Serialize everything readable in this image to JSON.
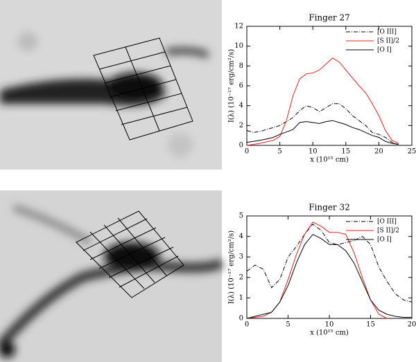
{
  "chart_data": [
    {
      "type": "line",
      "title": "Finger 27",
      "x_label": "x (10¹⁵ cm)",
      "y_label": "I(λ) (10⁻¹⁷ erg/cm²/s)",
      "x": [
        0,
        1,
        2,
        3,
        4,
        5,
        6,
        7,
        8,
        9,
        10,
        11,
        12,
        13,
        14,
        15,
        16,
        17,
        18,
        19,
        20,
        21,
        22,
        23
      ],
      "series": [
        {
          "name": "[O III]",
          "color": "#000000",
          "dash": "dash-dot",
          "values": [
            1.5,
            1.3,
            1.4,
            1.6,
            1.8,
            2.0,
            2.4,
            2.8,
            3.5,
            4.0,
            3.8,
            3.4,
            3.8,
            4.2,
            4.2,
            3.7,
            3.0,
            2.5,
            2.0,
            1.3,
            1.1,
            0.8,
            0.3,
            0.1
          ]
        },
        {
          "name": "[S II]/2",
          "color": "#e8221e",
          "values": [
            0.0,
            0.1,
            0.2,
            0.35,
            0.5,
            0.9,
            2.5,
            5.0,
            6.7,
            7.2,
            7.3,
            7.6,
            8.2,
            8.8,
            8.4,
            7.6,
            6.8,
            6.0,
            5.3,
            4.2,
            3.0,
            1.5,
            0.5,
            0.2
          ]
        },
        {
          "name": "[O I]",
          "color": "#000000",
          "values": [
            0.3,
            0.4,
            0.5,
            0.65,
            0.8,
            1.1,
            1.35,
            1.6,
            2.3,
            2.4,
            2.3,
            2.2,
            2.4,
            2.5,
            2.3,
            2.1,
            1.8,
            1.6,
            1.3,
            1.0,
            0.8,
            0.4,
            0.2,
            0.1
          ]
        }
      ],
      "xlim": [
        0,
        25
      ],
      "xticks": [
        0,
        5,
        10,
        15,
        20,
        25
      ],
      "ylim": [
        0,
        12
      ],
      "yticks": [
        0,
        2,
        4,
        6,
        8,
        10,
        12
      ]
    },
    {
      "type": "line",
      "title": "Finger 32",
      "x_label": "x (10¹⁵ cm)",
      "y_label": "I(λ) (10⁻¹⁷ erg/cm²/s)",
      "x": [
        0,
        1,
        2,
        3,
        4,
        5,
        6,
        7,
        8,
        9,
        10,
        11,
        12,
        13,
        14,
        15,
        16,
        17,
        18,
        19,
        20
      ],
      "series": [
        {
          "name": "[O III]",
          "color": "#000000",
          "dash": "dash-dot",
          "values": [
            2.3,
            2.6,
            2.4,
            1.5,
            1.9,
            3.0,
            3.5,
            4.1,
            4.6,
            4.3,
            3.7,
            3.6,
            3.7,
            3.8,
            4.0,
            3.6,
            2.5,
            1.8,
            1.2,
            0.9,
            0.8
          ]
        },
        {
          "name": "[S II]/2",
          "color": "#e8221e",
          "values": [
            0.0,
            0.05,
            0.1,
            0.3,
            0.8,
            1.9,
            3.1,
            4.1,
            4.7,
            4.5,
            4.2,
            4.2,
            4.1,
            3.2,
            2.0,
            0.9,
            0.2,
            0.0,
            null,
            null,
            null
          ]
        },
        {
          "name": "[O I]",
          "color": "#000000",
          "values": [
            0.0,
            0.1,
            0.2,
            0.3,
            0.8,
            1.6,
            2.7,
            3.6,
            4.1,
            3.9,
            3.6,
            3.6,
            3.3,
            2.7,
            1.8,
            0.9,
            0.4,
            0.2,
            0.1,
            0.05,
            0.05
          ]
        }
      ],
      "xlim": [
        0,
        20
      ],
      "xticks": [
        0,
        5,
        10,
        15,
        20
      ],
      "ylim": [
        0,
        5
      ],
      "yticks": [
        0,
        1,
        2,
        3,
        4,
        5
      ]
    }
  ]
}
